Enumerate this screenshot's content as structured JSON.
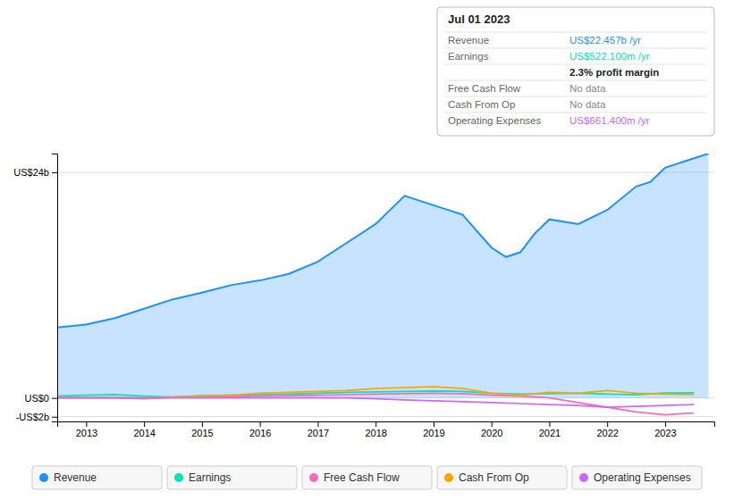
{
  "chart_data": {
    "type": "line",
    "xlim": [
      2012.5,
      2023.85
    ],
    "xticks": [
      2013,
      2014,
      2015,
      2016,
      2017,
      2018,
      2019,
      2020,
      2021,
      2022,
      2023
    ],
    "ylim": [
      -2500000000,
      26000000000
    ],
    "yticks": [
      {
        "value": -2000000000,
        "label": "-US$2b"
      },
      {
        "value": 0,
        "label": "US$0"
      },
      {
        "value": 24000000000,
        "label": "US$24b"
      }
    ],
    "grid": true,
    "legend": "bottom",
    "annotations": [
      "Jul 01 2023",
      "US$22.457b /yr",
      "US$522.100m /yr",
      "2.3% profit margin",
      "No data",
      "No data",
      "US$661.400m /yr"
    ],
    "series": [
      {
        "name": "Revenue",
        "type": "area",
        "color": "#1e90ff",
        "x": [
          2012.5,
          2013,
          2013.5,
          2014,
          2014.5,
          2015,
          2015.5,
          2016,
          2016.5,
          2017,
          2017.5,
          2018,
          2018.25,
          2018.5,
          2018.75,
          2019,
          2019.5,
          2020,
          2020.25,
          2020.5,
          2020.75,
          2021,
          2021.5,
          2022,
          2022.5,
          2022.75,
          2023,
          2023.5,
          2023.75
        ],
        "values": [
          7500000000,
          7800000000,
          8500000000,
          9500000000,
          10500000000,
          11200000000,
          12000000000,
          12500000000,
          13200000000,
          14500000000,
          16500000000,
          18500000000,
          20000000000,
          21500000000,
          21000000000,
          20500000000,
          19500000000,
          16000000000,
          15000000000,
          15500000000,
          17500000000,
          19000000000,
          18500000000,
          20000000000,
          22500000000,
          23000000000,
          24500000000,
          25500000000,
          26000000000
        ]
      },
      {
        "name": "Earnings",
        "type": "line",
        "color": "#00e6b8",
        "x": [
          2012.5,
          2013,
          2013.5,
          2014,
          2014.5,
          2015,
          2015.5,
          2016,
          2016.5,
          2017,
          2017.5,
          2018,
          2018.5,
          2019,
          2019.5,
          2020,
          2020.5,
          2021,
          2021.5,
          2022,
          2022.5,
          2023,
          2023.5
        ],
        "values": [
          200000000,
          300000000,
          350000000,
          200000000,
          100000000,
          250000000,
          300000000,
          350000000,
          400000000,
          500000000,
          600000000,
          650000000,
          700000000,
          750000000,
          700000000,
          500000000,
          400000000,
          450000000,
          500000000,
          400000000,
          350000000,
          520000000,
          550000000
        ]
      },
      {
        "name": "Free Cash Flow",
        "type": "line",
        "color": "#ff69b4",
        "x": [
          2012.5,
          2013,
          2013.5,
          2014,
          2014.5,
          2015,
          2015.5,
          2016,
          2016.5,
          2017,
          2017.5,
          2018,
          2018.5,
          2019,
          2019.5,
          2020,
          2020.5,
          2021,
          2021.5,
          2022,
          2022.5,
          2023,
          2023.5
        ],
        "values": [
          50000000,
          0,
          0,
          -100000000,
          50000000,
          100000000,
          150000000,
          200000000,
          250000000,
          300000000,
          350000000,
          400000000,
          450000000,
          500000000,
          450000000,
          300000000,
          200000000,
          0,
          -500000000,
          -1000000000,
          -1500000000,
          -1800000000,
          -1600000000
        ]
      },
      {
        "name": "Cash From Op",
        "type": "line",
        "color": "#ffa500",
        "x": [
          2012.5,
          2013,
          2013.5,
          2014,
          2014.5,
          2015,
          2015.5,
          2016,
          2016.5,
          2017,
          2017.5,
          2018,
          2018.5,
          2019,
          2019.5,
          2020,
          2020.5,
          2021,
          2021.5,
          2022,
          2022.5,
          2023,
          2023.5
        ],
        "values": [
          0,
          50000000,
          50000000,
          0,
          100000000,
          200000000,
          300000000,
          500000000,
          600000000,
          700000000,
          800000000,
          1000000000,
          1100000000,
          1200000000,
          1000000000,
          500000000,
          300000000,
          600000000,
          500000000,
          800000000,
          500000000,
          400000000,
          350000000
        ]
      },
      {
        "name": "Operating Expenses",
        "type": "line",
        "color": "#cc66ff",
        "x": [
          2012.5,
          2013,
          2013.5,
          2014,
          2014.5,
          2015,
          2015.5,
          2016,
          2016.5,
          2017,
          2017.5,
          2018,
          2018.5,
          2019,
          2019.5,
          2020,
          2020.5,
          2021,
          2021.5,
          2022,
          2022.5,
          2023,
          2023.5
        ],
        "values": [
          0,
          0,
          0,
          0,
          0,
          0,
          0,
          0,
          0,
          0,
          0,
          -100000000,
          -200000000,
          -300000000,
          -400000000,
          -500000000,
          -600000000,
          -700000000,
          -800000000,
          -1000000000,
          -900000000,
          -800000000,
          -700000000
        ]
      }
    ]
  }
}
